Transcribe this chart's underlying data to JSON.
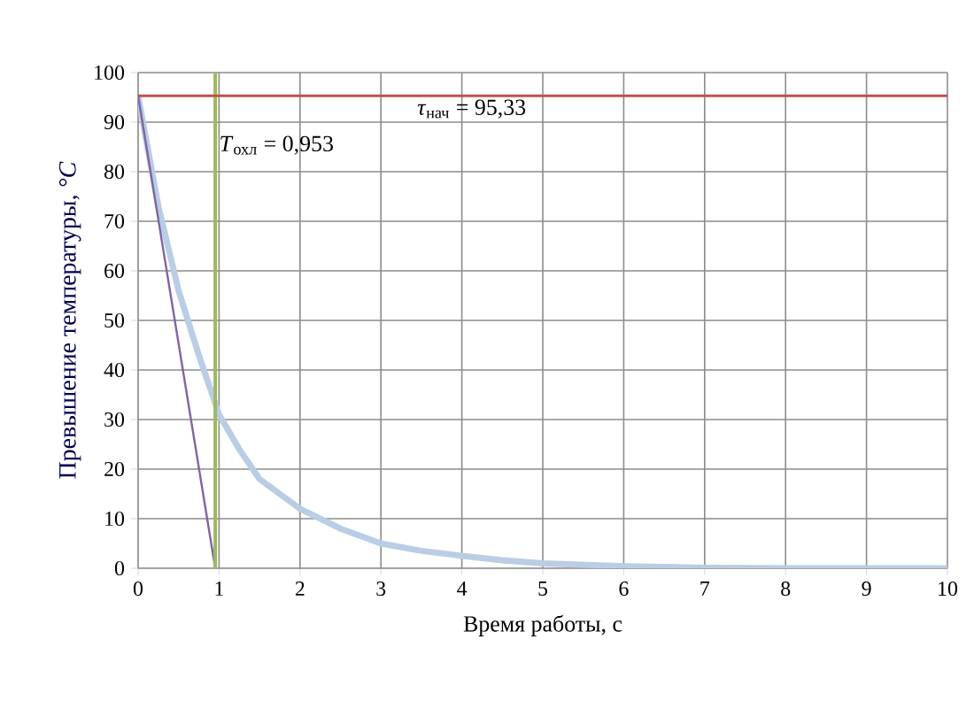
{
  "chart_data": {
    "type": "line",
    "xlabel": "Время работы, с",
    "ylabel": "Превышение температуры, *°C*",
    "xlim": [
      0,
      10
    ],
    "ylim": [
      0,
      100
    ],
    "xticks": [
      0,
      1,
      2,
      3,
      4,
      5,
      6,
      7,
      8,
      9,
      10
    ],
    "yticks": [
      0,
      10,
      20,
      30,
      40,
      50,
      60,
      70,
      80,
      90,
      100
    ],
    "grid": true,
    "series": [
      {
        "color": "#b9cde5",
        "x": [
          0,
          0.25,
          0.5,
          0.75,
          1,
          1.25,
          1.5,
          1.75,
          2,
          2.5,
          3,
          3.5,
          4,
          4.5,
          5,
          6,
          7,
          8,
          9,
          10
        ],
        "values": [
          95.3,
          73,
          56,
          43,
          31,
          24,
          18,
          15,
          12,
          8,
          5,
          3.5,
          2.5,
          1.6,
          1,
          0.4,
          0.1,
          0,
          0,
          0
        ]
      },
      {
        "color": "#8064a2",
        "x": [
          0,
          0.953
        ],
        "values": [
          95.3,
          0
        ]
      }
    ],
    "ref_lines": [
      {
        "axis": "x",
        "value": 0.953,
        "label": "*T*$_{охл}$ = 0,953",
        "color": "#9bbb59"
      },
      {
        "axis": "y",
        "value": 95.33,
        "label": "*τ*$_{нач}$ = 95,33",
        "color": "#c0504d"
      }
    ]
  }
}
